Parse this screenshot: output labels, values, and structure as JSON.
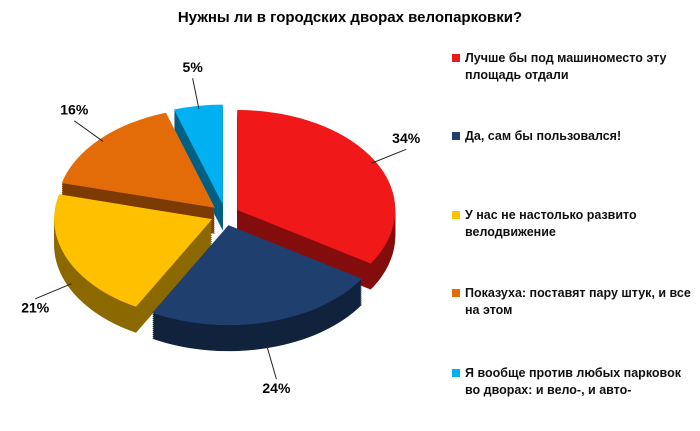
{
  "chart_data": {
    "type": "pie3d",
    "title": "Нужны ли в городских дворах велопарковки?",
    "categories": [
      "Лучше бы под машиноместо эту площадь отдали",
      "Да, сам бы пользовался!",
      "У нас не настолько развито велодвижение",
      "Показуха: поставят пару штук, и все на этом",
      "Я вообще против любых парковок во дворах: и вело-, и авто-"
    ],
    "values": [
      34,
      24,
      21,
      16,
      5
    ],
    "value_labels": [
      "34%",
      "24%",
      "21%",
      "16%",
      "5%"
    ],
    "colors": [
      "#f01818",
      "#1f3f6e",
      "#ffc000",
      "#e36c09",
      "#00b0f0"
    ],
    "legend": "right"
  }
}
